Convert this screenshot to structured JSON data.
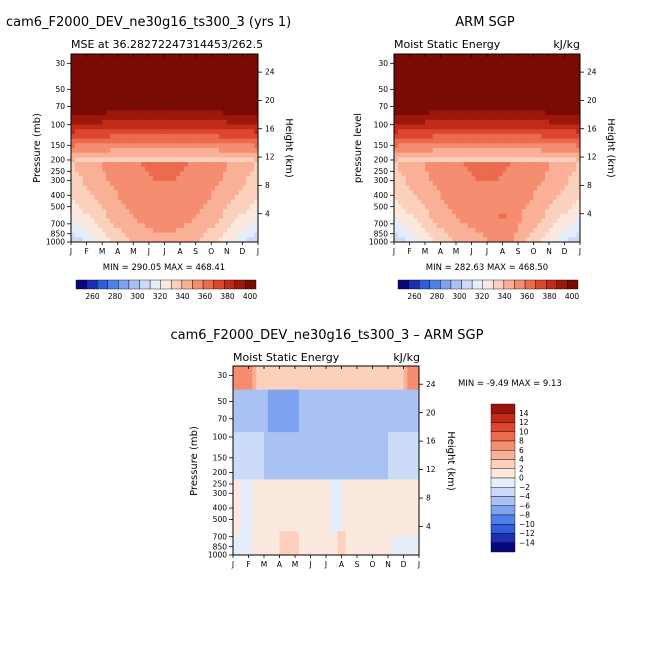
{
  "chart_data": [
    {
      "type": "heatmap",
      "title": "cam6_F2000_DEV_ne30g16_ts300_3 (yrs 1)",
      "subtitle_left": "MSE at 36.28272247314453/262.5",
      "subtitle_right": "",
      "ylabel": "Pressure (mb)",
      "ylabel_right": "Height (km)",
      "x": [
        "J",
        "F",
        "M",
        "A",
        "M",
        "J",
        "J",
        "A",
        "S",
        "O",
        "N",
        "D",
        "J"
      ],
      "y_pressure_ticks": [
        30,
        50,
        70,
        100,
        150,
        200,
        250,
        300,
        400,
        500,
        700,
        850,
        1000
      ],
      "y_height_ticks": [
        24,
        20,
        16,
        12,
        8,
        4
      ],
      "stats_text": "MIN = 290.05  MAX = 468.41",
      "min": 290.05,
      "max": 468.41,
      "colorbar": {
        "labels": [
          "260",
          "280",
          "300",
          "320",
          "340",
          "360",
          "380",
          "400"
        ],
        "range": [
          250,
          410
        ]
      }
    },
    {
      "type": "heatmap",
      "title": "ARM SGP",
      "subtitle_left": "Moist Static Energy",
      "subtitle_right": "kJ/kg",
      "ylabel": "pressure level",
      "ylabel_right": "Height (km)",
      "x": [
        "J",
        "F",
        "M",
        "A",
        "M",
        "J",
        "J",
        "A",
        "S",
        "O",
        "N",
        "D",
        "J"
      ],
      "y_pressure_ticks": [
        30,
        50,
        70,
        100,
        150,
        200,
        250,
        300,
        400,
        500,
        700,
        850,
        1000
      ],
      "y_height_ticks": [
        24,
        20,
        16,
        12,
        8,
        4
      ],
      "stats_text": "MIN = 282.63  MAX = 468.50",
      "min": 282.63,
      "max": 468.5,
      "colorbar": {
        "labels": [
          "260",
          "280",
          "300",
          "320",
          "340",
          "360",
          "380",
          "400"
        ],
        "range": [
          250,
          410
        ]
      }
    },
    {
      "type": "heatmap",
      "title": "cam6_F2000_DEV_ne30g16_ts300_3 – ARM SGP",
      "subtitle_left": "Moist Static Energy",
      "subtitle_right": "kJ/kg",
      "ylabel": "Pressure (mb)",
      "ylabel_right": "Height (km)",
      "x": [
        "J",
        "F",
        "M",
        "A",
        "M",
        "J",
        "J",
        "A",
        "S",
        "O",
        "N",
        "D",
        "J"
      ],
      "y_pressure_ticks": [
        30,
        50,
        70,
        100,
        150,
        200,
        250,
        300,
        400,
        500,
        700,
        850,
        1000
      ],
      "y_height_ticks": [
        24,
        20,
        16,
        12,
        8,
        4
      ],
      "stats_text": "MIN =   -9.49  MAX =    9.13",
      "min": -9.49,
      "max": 9.13,
      "colorbar": {
        "labels": [
          "14",
          "12",
          "10",
          "8",
          "6",
          "4",
          "2",
          "0",
          "−2",
          "−4",
          "−6",
          "−8",
          "−10",
          "−12",
          "−14"
        ]
      }
    }
  ],
  "palettes": {
    "absolute": [
      "#08087e",
      "#1b2fb0",
      "#2f5ddb",
      "#4f7fe8",
      "#7ea2ef",
      "#a9c2f3",
      "#ccdcf8",
      "#e6eefb",
      "#fbe9df",
      "#fbd0bd",
      "#f9b096",
      "#f58d71",
      "#ec6a4d",
      "#dc4630",
      "#c22a18",
      "#9d170b",
      "#7a0a04"
    ],
    "difference": [
      "#9a120a",
      "#c22a18",
      "#dc4630",
      "#ec6a4d",
      "#f58d71",
      "#f9b096",
      "#fbd0bd",
      "#fbe9df",
      "#e6eefb",
      "#ccdcf8",
      "#a9c2f3",
      "#7ea2ef",
      "#4f7fe8",
      "#2f5ddb",
      "#1b2fb0",
      "#08087e"
    ]
  }
}
